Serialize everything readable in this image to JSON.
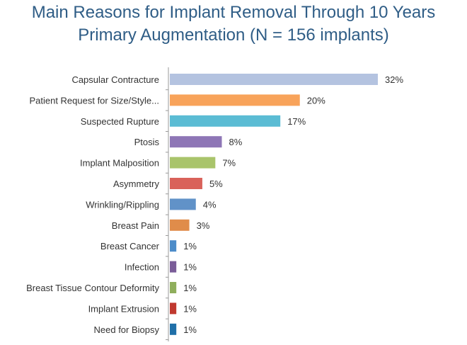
{
  "chart_data": {
    "type": "bar",
    "orientation": "horizontal",
    "title": "Main Reasons for Implant Removal Through 10 Years",
    "subtitle": "Primary Augmentation (N = 156 implants)",
    "categories": [
      "Capsular Contracture",
      "Patient Request for Size/Style...",
      "Suspected Rupture",
      "Ptosis",
      "Implant Malposition",
      "Asymmetry",
      "Wrinkling/Rippling",
      "Breast Pain",
      "Breast Cancer",
      "Infection",
      "Breast Tissue Contour Deformity",
      "Implant Extrusion",
      "Need for Biopsy"
    ],
    "values": [
      32,
      20,
      17,
      8,
      7,
      5,
      4,
      3,
      1,
      1,
      1,
      1,
      1
    ],
    "value_labels": [
      "32%",
      "20%",
      "17%",
      "8%",
      "7%",
      "5%",
      "4%",
      "3%",
      "1%",
      "1%",
      "1%",
      "1%",
      "1%"
    ],
    "colors": [
      "#b4c3e0",
      "#f8a35a",
      "#5bbcd4",
      "#8e76b6",
      "#a9c46b",
      "#d9625a",
      "#6192c8",
      "#e08c4a",
      "#4c8cc9",
      "#7a5c98",
      "#8fae5c",
      "#c0392f",
      "#1f6fa8"
    ],
    "xlim": [
      0,
      32
    ],
    "grid": false,
    "legend": "none"
  }
}
